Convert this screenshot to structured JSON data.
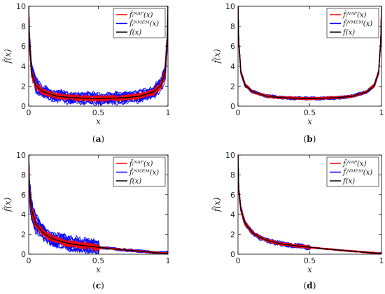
{
  "colors": {
    "nap": "#ff0000",
    "nmem": "#0000ff",
    "true": "#000000"
  },
  "legend": [
    {
      "text": "f̂ᵢᴺᴬᴾ(x)",
      "color": "#ff0000"
    },
    {
      "text": "f̂ᵢᴺᴹᴱᴹ(x)",
      "color": "#0000ff"
    },
    {
      "text": "f(x)",
      "color": "#000000"
    }
  ],
  "chart_data": [
    {
      "type": "line",
      "caption": "(a)",
      "xlabel": "x",
      "ylabel": "f̂(x)",
      "xlim": [
        0,
        1
      ],
      "ylim": [
        0,
        10
      ],
      "xticks": [
        0,
        0.5,
        1
      ],
      "yticks": [
        0,
        2,
        4,
        6,
        8,
        10
      ],
      "true_function": {
        "x": [
          0.0,
          0.005,
          0.02,
          0.05,
          0.1,
          0.2,
          0.3,
          0.5,
          0.7,
          0.8,
          0.9,
          0.95,
          0.98,
          0.995,
          1.0
        ],
        "y": [
          10,
          6.5,
          3.4,
          2.1,
          1.45,
          1.0,
          0.85,
          0.75,
          0.85,
          1.0,
          1.45,
          2.1,
          3.4,
          6.5,
          10
        ]
      },
      "series": [
        {
          "name": "f̂ᵢᴺᴬᴾ(x)",
          "spread_center": 0.2,
          "spread_tail": 0.15
        },
        {
          "name": "f̂ᵢᴺᴹᴱᴹ(x)",
          "spread_center": 0.45,
          "spread_tail": 0.3
        },
        {
          "name": "f(x)"
        }
      ]
    },
    {
      "type": "line",
      "caption": "(b)",
      "xlabel": "x",
      "ylabel": "f̂(x)",
      "xlim": [
        0,
        1
      ],
      "ylim": [
        0,
        10
      ],
      "xticks": [
        0,
        0.5,
        1
      ],
      "yticks": [
        0,
        2,
        4,
        6,
        8,
        10
      ],
      "true_function": {
        "x": [
          0.0,
          0.005,
          0.02,
          0.05,
          0.1,
          0.2,
          0.3,
          0.5,
          0.7,
          0.8,
          0.9,
          0.95,
          0.98,
          0.995,
          1.0
        ],
        "y": [
          10,
          6.5,
          3.4,
          2.1,
          1.45,
          1.0,
          0.85,
          0.75,
          0.85,
          1.0,
          1.45,
          2.1,
          3.4,
          6.5,
          10
        ]
      },
      "series": [
        {
          "name": "f̂ᵢᴺᴬᴾ(x)",
          "spread_center": 0.08,
          "spread_tail": 0.06
        },
        {
          "name": "f̂ᵢᴺᴹᴱᴹ(x)",
          "spread_center": 0.12,
          "spread_tail": 0.08
        },
        {
          "name": "f(x)"
        }
      ]
    },
    {
      "type": "line",
      "caption": "(c)",
      "xlabel": "x",
      "ylabel": "f̂(x)",
      "xlim": [
        0,
        1
      ],
      "ylim": [
        0,
        10
      ],
      "xticks": [
        0,
        0.5,
        1
      ],
      "yticks": [
        0,
        2,
        4,
        6,
        8,
        10
      ],
      "true_function": {
        "x": [
          0.0,
          0.005,
          0.02,
          0.05,
          0.1,
          0.15,
          0.2,
          0.3,
          0.4,
          0.5,
          0.6,
          0.7,
          0.8,
          0.9,
          1.0
        ],
        "y": [
          10,
          6.5,
          4.5,
          3.1,
          2.2,
          1.7,
          1.4,
          1.05,
          0.85,
          0.7,
          0.55,
          0.42,
          0.3,
          0.18,
          0.05
        ]
      },
      "series": [
        {
          "name": "f̂ᵢᴺᴬᴾ(x)",
          "spread_center": 0.25,
          "spread_tail": 0.05
        },
        {
          "name": "f̂ᵢᴺᴹᴱᴹ(x)",
          "spread_center": 0.6,
          "spread_tail": 0.1
        },
        {
          "name": "f(x)"
        }
      ]
    },
    {
      "type": "line",
      "caption": "(d)",
      "xlabel": "x",
      "ylabel": "f̂(x)",
      "xlim": [
        0,
        1
      ],
      "ylim": [
        0,
        10
      ],
      "xticks": [
        0,
        0.5,
        1
      ],
      "yticks": [
        0,
        2,
        4,
        6,
        8,
        10
      ],
      "true_function": {
        "x": [
          0.0,
          0.005,
          0.02,
          0.05,
          0.1,
          0.15,
          0.2,
          0.3,
          0.4,
          0.5,
          0.6,
          0.7,
          0.8,
          0.9,
          1.0
        ],
        "y": [
          10,
          6.5,
          4.5,
          3.1,
          2.2,
          1.7,
          1.4,
          1.05,
          0.85,
          0.7,
          0.55,
          0.42,
          0.3,
          0.18,
          0.05
        ]
      },
      "series": [
        {
          "name": "f̂ᵢᴺᴬᴾ(x)",
          "spread_center": 0.1,
          "spread_tail": 0.04
        },
        {
          "name": "f̂ᵢᴺᴹᴱᴹ(x)",
          "spread_center": 0.18,
          "spread_tail": 0.05
        },
        {
          "name": "f(x)"
        }
      ]
    }
  ]
}
